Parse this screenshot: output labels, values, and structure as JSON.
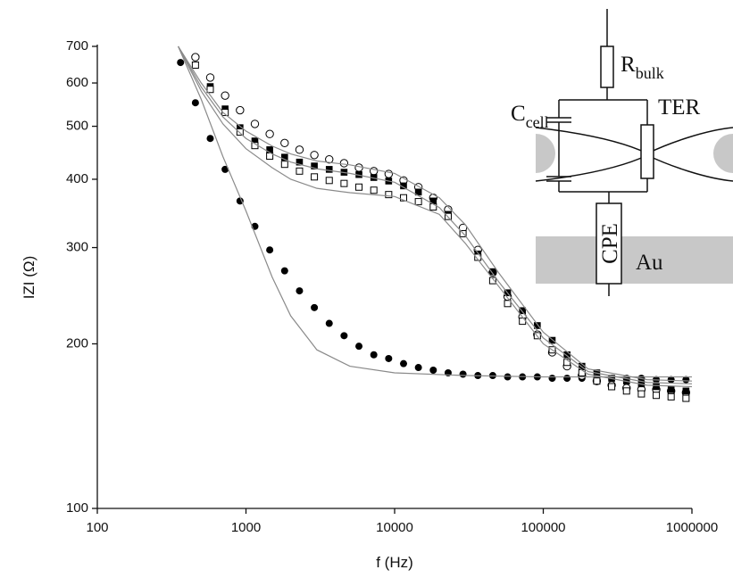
{
  "chart_data": {
    "type": "scatter",
    "xlabel": "f (Hz)",
    "ylabel": "IZI (Ω)",
    "xscale": "log",
    "yscale": "log",
    "xlim": [
      100,
      1000000
    ],
    "ylim": [
      100,
      700
    ],
    "xticks": [
      100,
      1000,
      10000,
      100000,
      1000000
    ],
    "yticks": [
      100,
      200,
      300,
      400,
      500,
      600,
      700
    ],
    "series": [
      {
        "marker": "filled-circle",
        "color": "#000000",
        "x": [
          363,
          457,
          575,
          724,
          912,
          1148,
          1445,
          1820,
          2291,
          2884,
          3631,
          4571,
          5754,
          7244,
          9120,
          11482,
          14454,
          18197,
          22909,
          28840,
          36308,
          45709,
          57544,
          72444,
          91201,
          114815,
          144544,
          181970,
          229087,
          288403,
          363078,
          457088,
          575440,
          724436,
          912011
        ],
        "values": [
          654,
          552,
          475,
          417,
          365,
          328,
          297,
          272,
          250,
          233,
          218,
          207,
          198,
          191,
          188,
          184,
          181,
          179,
          177,
          176,
          175,
          175,
          174,
          174,
          174,
          173,
          173,
          173,
          173,
          173,
          173,
          173,
          172,
          172,
          172
        ]
      },
      {
        "marker": "open-circle",
        "color": "#000000",
        "x": [
          457,
          575,
          724,
          912,
          1148,
          1445,
          1820,
          2291,
          2884,
          3631,
          4571,
          5754,
          7244,
          9120,
          11482,
          14454,
          18197,
          22909,
          28840,
          36308,
          45709,
          57544,
          72444,
          91201,
          114815,
          144544,
          181970,
          229087,
          288403,
          363078,
          457088,
          575440,
          724436,
          912011
        ],
        "values": [
          669,
          614,
          569,
          535,
          505,
          484,
          466,
          453,
          443,
          435,
          428,
          420,
          414,
          409,
          398,
          387,
          370,
          352,
          326,
          297,
          270,
          244,
          224,
          208,
          193,
          182,
          175,
          171,
          168,
          166,
          165,
          165,
          164,
          163
        ]
      },
      {
        "marker": "filled-square",
        "color": "#000000",
        "x": [
          575,
          724,
          912,
          1148,
          1445,
          1820,
          2291,
          2884,
          3631,
          4571,
          5754,
          7244,
          9120,
          11482,
          14454,
          18197,
          22909,
          28840,
          36308,
          45709,
          57544,
          72444,
          91201,
          114815,
          144544,
          181970,
          229087,
          288403,
          363078,
          457088,
          575440,
          724436,
          912011
        ],
        "values": [
          591,
          538,
          497,
          470,
          453,
          439,
          430,
          423,
          417,
          412,
          408,
          403,
          397,
          389,
          379,
          365,
          345,
          318,
          292,
          271,
          248,
          230,
          216,
          203,
          191,
          182,
          177,
          173,
          171,
          169,
          167,
          165,
          164
        ]
      },
      {
        "marker": "open-square",
        "color": "#000000",
        "x": [
          457,
          575,
          724,
          912,
          1148,
          1445,
          1820,
          2291,
          2884,
          3631,
          4571,
          5754,
          7244,
          9120,
          11482,
          14454,
          18197,
          22909,
          28840,
          36308,
          45709,
          57544,
          72444,
          91201,
          114815,
          144544,
          181970,
          229087,
          288403,
          363078,
          457088,
          575440,
          724436,
          912011
        ],
        "values": [
          647,
          584,
          530,
          488,
          461,
          441,
          426,
          414,
          404,
          398,
          393,
          387,
          382,
          375,
          370,
          364,
          356,
          342,
          318,
          288,
          261,
          237,
          220,
          207,
          195,
          185,
          177,
          171,
          167,
          164,
          162,
          161,
          160,
          159
        ]
      },
      {
        "marker": "line",
        "color": "#8a8a8a",
        "x": [
          350,
          500,
          700,
          1000,
          1500,
          2000,
          3000,
          5000,
          10000,
          30000,
          100000,
          1000000
        ],
        "values": [
          700,
          560,
          440,
          350,
          265,
          225,
          195,
          182,
          177,
          175,
          174,
          174
        ]
      },
      {
        "marker": "line",
        "color": "#8a8a8a",
        "x": [
          350,
          500,
          700,
          1000,
          1500,
          2000,
          3000,
          5000,
          10000,
          20000,
          30000,
          50000,
          100000,
          200000,
          500000,
          1000000
        ],
        "values": [
          700,
          600,
          530,
          490,
          460,
          445,
          432,
          425,
          410,
          370,
          330,
          270,
          210,
          180,
          172,
          171
        ]
      },
      {
        "marker": "line",
        "color": "#8a8a8a",
        "x": [
          350,
          500,
          700,
          1000,
          1500,
          2000,
          3000,
          5000,
          10000,
          20000,
          30000,
          50000,
          100000,
          200000,
          500000,
          1000000
        ],
        "values": [
          700,
          590,
          520,
          475,
          445,
          430,
          418,
          410,
          395,
          355,
          315,
          260,
          205,
          178,
          170,
          169
        ]
      },
      {
        "marker": "line",
        "color": "#8a8a8a",
        "x": [
          350,
          500,
          700,
          1000,
          1500,
          2000,
          3000,
          5000,
          10000,
          20000,
          30000,
          50000,
          100000,
          200000,
          500000,
          1000000
        ],
        "values": [
          700,
          580,
          505,
          455,
          420,
          400,
          385,
          378,
          372,
          345,
          305,
          255,
          200,
          176,
          168,
          167
        ]
      }
    ],
    "inset_labels": [
      {
        "text": "R",
        "sub": "bulk"
      },
      {
        "text": "C",
        "sub": "cell"
      },
      {
        "text": "TER"
      },
      {
        "text": "CPE"
      },
      {
        "text": "Au"
      }
    ]
  }
}
